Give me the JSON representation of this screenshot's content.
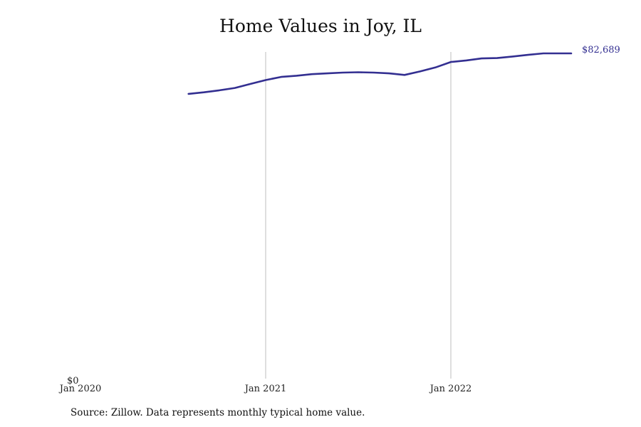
{
  "title": "Home Values in Joy, IL",
  "source": "Source: Zillow. Data represents monthly typical home value.",
  "colors": {
    "line": "#332f91",
    "grid": "#bdbdbd",
    "text": "#111111"
  },
  "chart_data": {
    "type": "line",
    "title": "Home Values in Joy, IL",
    "xlabel": "",
    "ylabel": "",
    "x_ticks": [
      "Jan 2020",
      "Jan 2021",
      "Jan 2022"
    ],
    "y_ticks": [
      "$0"
    ],
    "ylim": [
      0,
      82689
    ],
    "xlim": [
      "2020-01",
      "2022-12"
    ],
    "grid": "vertical lines at Jan 2021 and Jan 2022",
    "end_label": "$82,689",
    "series": [
      {
        "x": [
          "2020-08",
          "2020-09",
          "2020-10",
          "2020-11",
          "2020-12",
          "2021-01",
          "2021-02",
          "2021-03",
          "2021-04",
          "2021-05",
          "2021-06",
          "2021-07",
          "2021-08",
          "2021-09",
          "2021-10",
          "2021-11",
          "2021-12",
          "2022-01",
          "2022-02",
          "2022-03",
          "2022-04",
          "2022-05",
          "2022-06",
          "2022-07",
          "2022-08"
        ],
        "values": [
          72400,
          72800,
          73300,
          73900,
          74900,
          75900,
          76700,
          77000,
          77400,
          77600,
          77800,
          77900,
          77800,
          77600,
          77200,
          78100,
          79100,
          80500,
          80900,
          81400,
          81500,
          81900,
          82300,
          82689,
          82689
        ]
      }
    ]
  }
}
